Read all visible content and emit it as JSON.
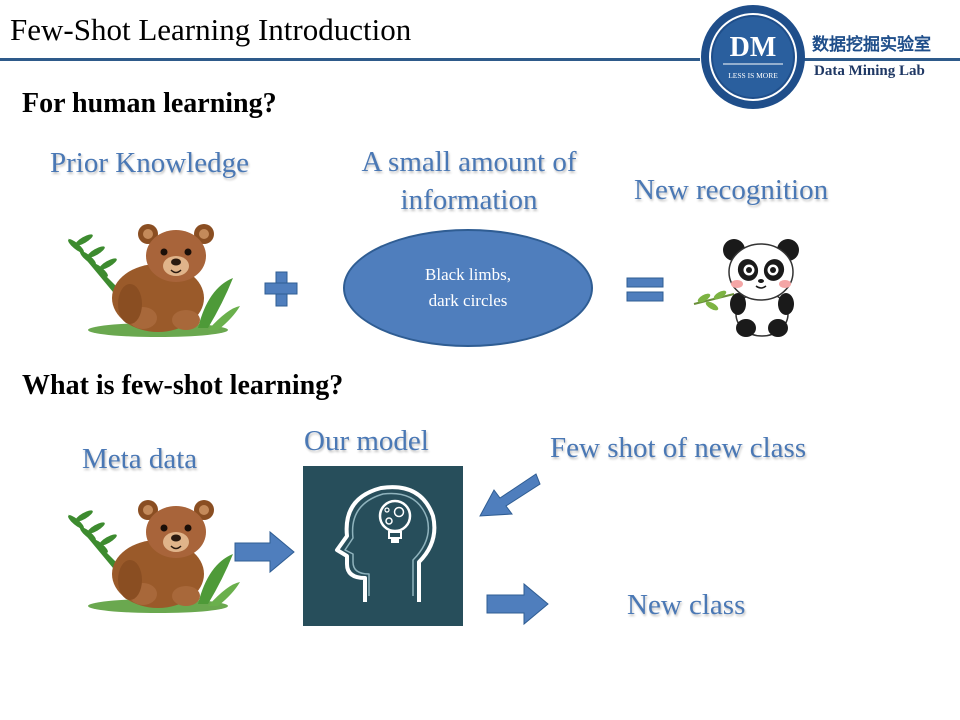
{
  "header": {
    "title": "Few-Shot Learning Introduction",
    "logo_initials": "DM",
    "logo_tagline": "LESS IS MORE",
    "lab_name_cn": "数据挖掘实验室",
    "lab_name_en": "Data Mining Lab"
  },
  "section1": {
    "heading": "For human learning?",
    "prior_knowledge": "Prior Knowledge",
    "small_info_line1": "A small amount of",
    "small_info_line2": "information",
    "new_recognition": "New recognition",
    "ellipse_line1": "Black limbs,",
    "ellipse_line2": "dark circles"
  },
  "section2": {
    "heading": "What is few-shot learning?",
    "meta_data": "Meta data",
    "our_model": "Our model",
    "few_shot": "Few shot of new class",
    "new_class": "New class"
  },
  "colors": {
    "accent_blue": "#4a78b5",
    "shape_blue": "#4f7ebd",
    "model_bg": "#274e5b",
    "header_line": "#2e5a8a"
  }
}
